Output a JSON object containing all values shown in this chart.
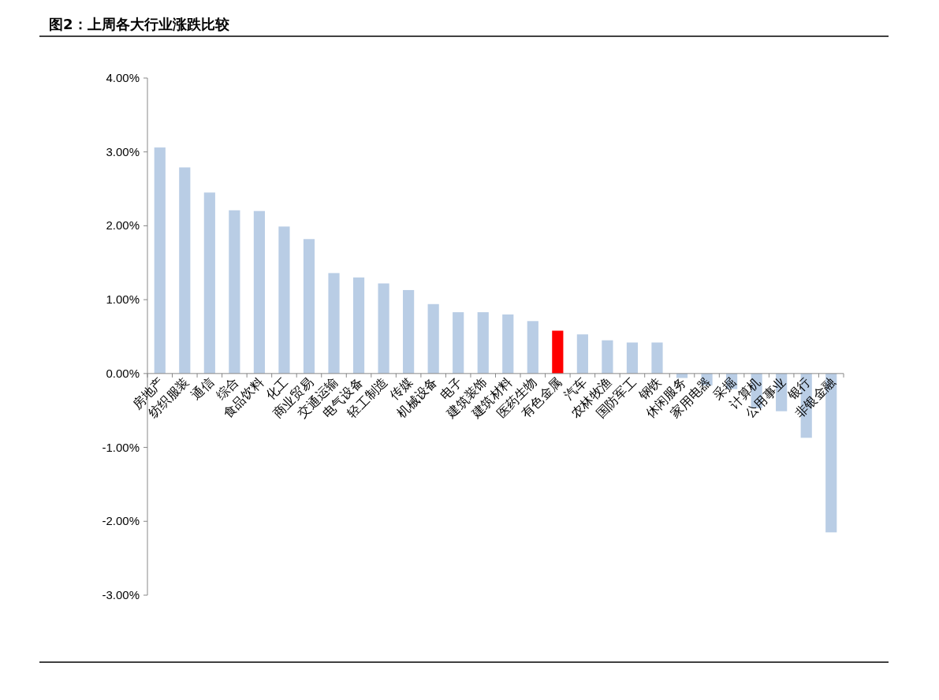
{
  "chart_data": {
    "type": "bar",
    "title": "图2：上周各大行业涨跌比较",
    "categories": [
      "房地产",
      "纺织服装",
      "通信",
      "综合",
      "食品饮料",
      "化工",
      "商业贸易",
      "交通运输",
      "电气设备",
      "轻工制造",
      "传媒",
      "机械设备",
      "电子",
      "建筑装饰",
      "建筑材料",
      "医药生物",
      "有色金属",
      "汽车",
      "农林牧渔",
      "国防军工",
      "钢铁",
      "休闲服务",
      "家用电器",
      "采掘",
      "计算机",
      "公用事业",
      "银行",
      "非银金融"
    ],
    "values": [
      3.06,
      2.79,
      2.45,
      2.21,
      2.2,
      1.99,
      1.82,
      1.36,
      1.3,
      1.22,
      1.13,
      0.94,
      0.83,
      0.83,
      0.8,
      0.71,
      0.58,
      0.53,
      0.45,
      0.42,
      0.42,
      -0.06,
      -0.16,
      -0.21,
      -0.47,
      -0.51,
      -0.87,
      -2.15
    ],
    "colors": [
      "#b9cde5",
      "#b9cde5",
      "#b9cde5",
      "#b9cde5",
      "#b9cde5",
      "#b9cde5",
      "#b9cde5",
      "#b9cde5",
      "#b9cde5",
      "#b9cde5",
      "#b9cde5",
      "#b9cde5",
      "#b9cde5",
      "#b9cde5",
      "#b9cde5",
      "#b9cde5",
      "#ff0000",
      "#b9cde5",
      "#b9cde5",
      "#b9cde5",
      "#b9cde5",
      "#b9cde5",
      "#b9cde5",
      "#b9cde5",
      "#b9cde5",
      "#b9cde5",
      "#b9cde5",
      "#b9cde5"
    ],
    "ylim": [
      -3,
      4
    ],
    "yticks": [
      {
        "value": 4,
        "label": "4.00%"
      },
      {
        "value": 3,
        "label": "3.00%"
      },
      {
        "value": 2,
        "label": "2.00%"
      },
      {
        "value": 1,
        "label": "1.00%"
      },
      {
        "value": 0,
        "label": "0.00%"
      },
      {
        "value": -1,
        "label": "-1.00%"
      },
      {
        "value": -2,
        "label": "-2.00%"
      },
      {
        "value": -3,
        "label": "-3.00%"
      }
    ],
    "grid": false
  }
}
